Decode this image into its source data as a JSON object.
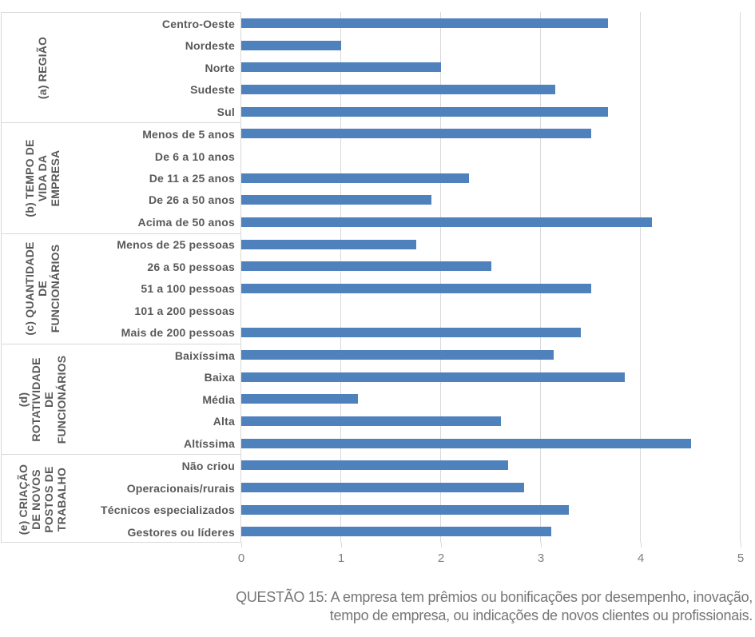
{
  "caption": {
    "text": "QUESTÃO 15: A empresa tem prêmios ou bonificações por desempenho, inovação,\ntempo de empresa, ou indicações de novos clientes ou profissionais."
  },
  "colors": {
    "bar": "#4F81BD",
    "grid": "#D9D9D9",
    "label_text": "#595959",
    "axis_text": "#7F7F7F",
    "caption_text": "#767676"
  },
  "chart_data": {
    "type": "bar",
    "orientation": "horizontal",
    "title": "",
    "xlabel": "",
    "ylabel": "",
    "xlim": [
      0,
      5
    ],
    "x_ticks": [
      0,
      1,
      2,
      3,
      4,
      5
    ],
    "grid": true,
    "legend": false,
    "groups": [
      {
        "label": "(a) REGIÃO",
        "items": [
          {
            "label": "Centro-Oeste",
            "value": 3.67
          },
          {
            "label": "Nordeste",
            "value": 1.0
          },
          {
            "label": "Norte",
            "value": 2.0
          },
          {
            "label": "Sudeste",
            "value": 3.14
          },
          {
            "label": "Sul",
            "value": 3.67
          }
        ]
      },
      {
        "label": "(b) TEMPO DE\nVIDA DA\nEMPRESA",
        "items": [
          {
            "label": "Menos de 5 anos",
            "value": 3.5
          },
          {
            "label": "De 6 a 10 anos",
            "value": 0
          },
          {
            "label": "De 11 a 25 anos",
            "value": 2.28
          },
          {
            "label": "De 26 a 50 anos",
            "value": 1.9
          },
          {
            "label": "Acima de 50 anos",
            "value": 4.11
          }
        ]
      },
      {
        "label": "(c) QUANTIDADE\nDE\nFUNCIONÁRIOS",
        "items": [
          {
            "label": "Menos de 25 pessoas",
            "value": 1.75
          },
          {
            "label": "26 a 50 pessoas",
            "value": 2.5
          },
          {
            "label": "51 a 100 pessoas",
            "value": 3.5
          },
          {
            "label": "101 a 200 pessoas",
            "value": 0
          },
          {
            "label": "Mais de 200 pessoas",
            "value": 3.4
          }
        ]
      },
      {
        "label": "(d)\nROTATIVIDADE\nDE\nFUNCIONÁRIOS",
        "items": [
          {
            "label": "Baixíssima",
            "value": 3.13
          },
          {
            "label": "Baixa",
            "value": 3.84
          },
          {
            "label": "Média",
            "value": 1.17
          },
          {
            "label": "Alta",
            "value": 2.6
          },
          {
            "label": "Altíssima",
            "value": 4.5
          }
        ]
      },
      {
        "label": "(e) CRIAÇÃO\nDE NOVOS\nPOSTOS DE\nTRABALHO",
        "items": [
          {
            "label": "Não criou",
            "value": 2.67
          },
          {
            "label": "Operacionais/rurais",
            "value": 2.83
          },
          {
            "label": "Técnicos especializados",
            "value": 3.28
          },
          {
            "label": "Gestores ou líderes",
            "value": 3.1
          }
        ]
      }
    ]
  }
}
